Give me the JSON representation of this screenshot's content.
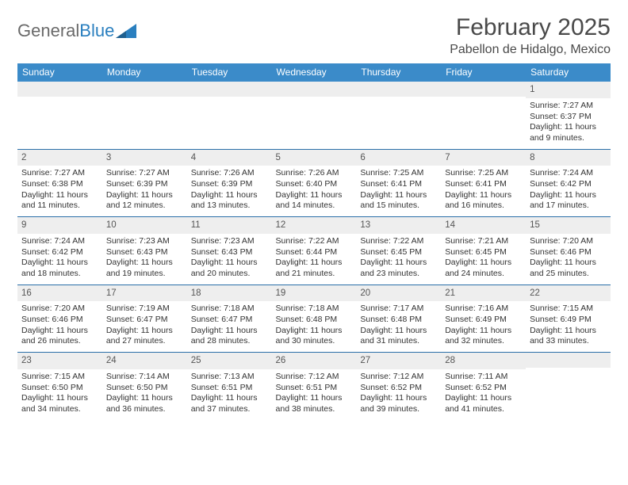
{
  "branding": {
    "name_a": "General",
    "name_b": "Blue",
    "logo_color": "#2a7fbf"
  },
  "title": "February 2025",
  "location": "Pabellon de Hidalgo, Mexico",
  "colors": {
    "header_bg": "#3b8bc9",
    "header_text": "#ffffff",
    "daynum_bg": "#eeeeee",
    "border": "#2a6fa8",
    "page_bg": "#ffffff",
    "text": "#333333"
  },
  "day_headers": [
    "Sunday",
    "Monday",
    "Tuesday",
    "Wednesday",
    "Thursday",
    "Friday",
    "Saturday"
  ],
  "weeks": [
    [
      {
        "day": "",
        "lines": []
      },
      {
        "day": "",
        "lines": []
      },
      {
        "day": "",
        "lines": []
      },
      {
        "day": "",
        "lines": []
      },
      {
        "day": "",
        "lines": []
      },
      {
        "day": "",
        "lines": []
      },
      {
        "day": "1",
        "lines": [
          "Sunrise: 7:27 AM",
          "Sunset: 6:37 PM",
          "Daylight: 11 hours and 9 minutes."
        ]
      }
    ],
    [
      {
        "day": "2",
        "lines": [
          "Sunrise: 7:27 AM",
          "Sunset: 6:38 PM",
          "Daylight: 11 hours and 11 minutes."
        ]
      },
      {
        "day": "3",
        "lines": [
          "Sunrise: 7:27 AM",
          "Sunset: 6:39 PM",
          "Daylight: 11 hours and 12 minutes."
        ]
      },
      {
        "day": "4",
        "lines": [
          "Sunrise: 7:26 AM",
          "Sunset: 6:39 PM",
          "Daylight: 11 hours and 13 minutes."
        ]
      },
      {
        "day": "5",
        "lines": [
          "Sunrise: 7:26 AM",
          "Sunset: 6:40 PM",
          "Daylight: 11 hours and 14 minutes."
        ]
      },
      {
        "day": "6",
        "lines": [
          "Sunrise: 7:25 AM",
          "Sunset: 6:41 PM",
          "Daylight: 11 hours and 15 minutes."
        ]
      },
      {
        "day": "7",
        "lines": [
          "Sunrise: 7:25 AM",
          "Sunset: 6:41 PM",
          "Daylight: 11 hours and 16 minutes."
        ]
      },
      {
        "day": "8",
        "lines": [
          "Sunrise: 7:24 AM",
          "Sunset: 6:42 PM",
          "Daylight: 11 hours and 17 minutes."
        ]
      }
    ],
    [
      {
        "day": "9",
        "lines": [
          "Sunrise: 7:24 AM",
          "Sunset: 6:42 PM",
          "Daylight: 11 hours and 18 minutes."
        ]
      },
      {
        "day": "10",
        "lines": [
          "Sunrise: 7:23 AM",
          "Sunset: 6:43 PM",
          "Daylight: 11 hours and 19 minutes."
        ]
      },
      {
        "day": "11",
        "lines": [
          "Sunrise: 7:23 AM",
          "Sunset: 6:43 PM",
          "Daylight: 11 hours and 20 minutes."
        ]
      },
      {
        "day": "12",
        "lines": [
          "Sunrise: 7:22 AM",
          "Sunset: 6:44 PM",
          "Daylight: 11 hours and 21 minutes."
        ]
      },
      {
        "day": "13",
        "lines": [
          "Sunrise: 7:22 AM",
          "Sunset: 6:45 PM",
          "Daylight: 11 hours and 23 minutes."
        ]
      },
      {
        "day": "14",
        "lines": [
          "Sunrise: 7:21 AM",
          "Sunset: 6:45 PM",
          "Daylight: 11 hours and 24 minutes."
        ]
      },
      {
        "day": "15",
        "lines": [
          "Sunrise: 7:20 AM",
          "Sunset: 6:46 PM",
          "Daylight: 11 hours and 25 minutes."
        ]
      }
    ],
    [
      {
        "day": "16",
        "lines": [
          "Sunrise: 7:20 AM",
          "Sunset: 6:46 PM",
          "Daylight: 11 hours and 26 minutes."
        ]
      },
      {
        "day": "17",
        "lines": [
          "Sunrise: 7:19 AM",
          "Sunset: 6:47 PM",
          "Daylight: 11 hours and 27 minutes."
        ]
      },
      {
        "day": "18",
        "lines": [
          "Sunrise: 7:18 AM",
          "Sunset: 6:47 PM",
          "Daylight: 11 hours and 28 minutes."
        ]
      },
      {
        "day": "19",
        "lines": [
          "Sunrise: 7:18 AM",
          "Sunset: 6:48 PM",
          "Daylight: 11 hours and 30 minutes."
        ]
      },
      {
        "day": "20",
        "lines": [
          "Sunrise: 7:17 AM",
          "Sunset: 6:48 PM",
          "Daylight: 11 hours and 31 minutes."
        ]
      },
      {
        "day": "21",
        "lines": [
          "Sunrise: 7:16 AM",
          "Sunset: 6:49 PM",
          "Daylight: 11 hours and 32 minutes."
        ]
      },
      {
        "day": "22",
        "lines": [
          "Sunrise: 7:15 AM",
          "Sunset: 6:49 PM",
          "Daylight: 11 hours and 33 minutes."
        ]
      }
    ],
    [
      {
        "day": "23",
        "lines": [
          "Sunrise: 7:15 AM",
          "Sunset: 6:50 PM",
          "Daylight: 11 hours and 34 minutes."
        ]
      },
      {
        "day": "24",
        "lines": [
          "Sunrise: 7:14 AM",
          "Sunset: 6:50 PM",
          "Daylight: 11 hours and 36 minutes."
        ]
      },
      {
        "day": "25",
        "lines": [
          "Sunrise: 7:13 AM",
          "Sunset: 6:51 PM",
          "Daylight: 11 hours and 37 minutes."
        ]
      },
      {
        "day": "26",
        "lines": [
          "Sunrise: 7:12 AM",
          "Sunset: 6:51 PM",
          "Daylight: 11 hours and 38 minutes."
        ]
      },
      {
        "day": "27",
        "lines": [
          "Sunrise: 7:12 AM",
          "Sunset: 6:52 PM",
          "Daylight: 11 hours and 39 minutes."
        ]
      },
      {
        "day": "28",
        "lines": [
          "Sunrise: 7:11 AM",
          "Sunset: 6:52 PM",
          "Daylight: 11 hours and 41 minutes."
        ]
      },
      {
        "day": "",
        "lines": []
      }
    ]
  ]
}
